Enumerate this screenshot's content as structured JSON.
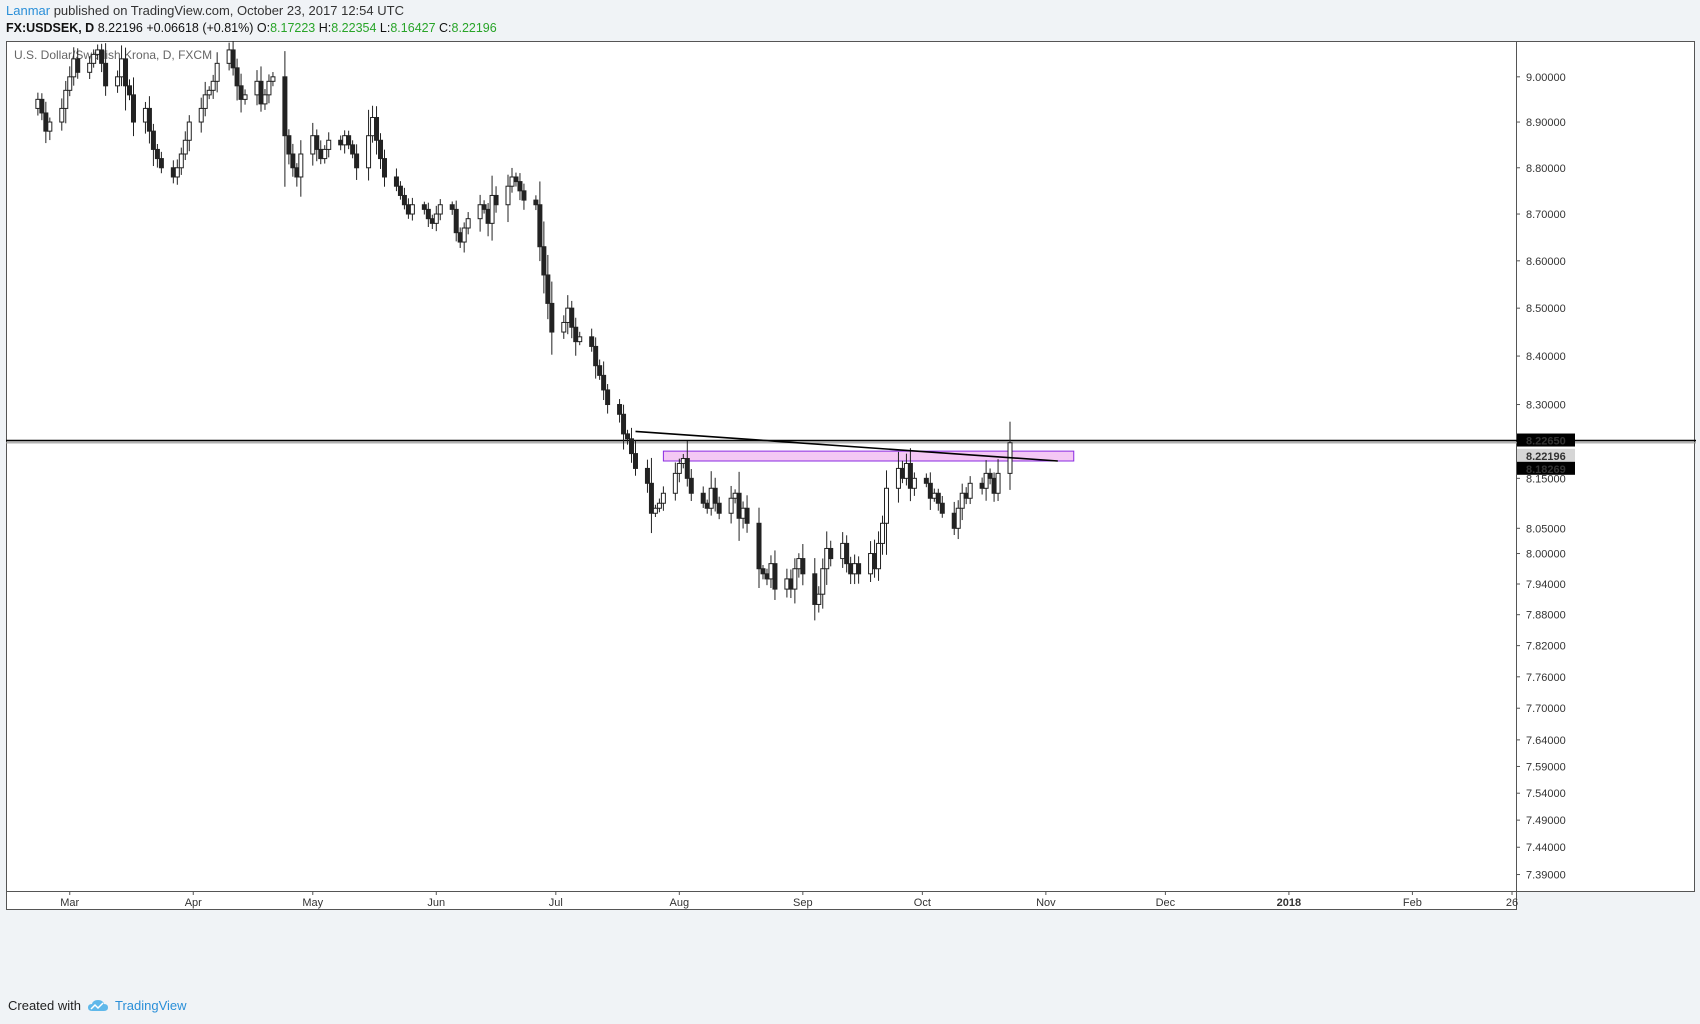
{
  "header": {
    "author": "Lanmar",
    "published": "published on TradingView.com, October 23, 2017 12:54 UTC",
    "symbol": "FX:USDSEK, D",
    "last": "8.22196",
    "change": "+0.06618 (+0.81%)",
    "o_label": "O:",
    "o_value": "8.17223",
    "h_label": "H:",
    "h_value": "8.22354",
    "l_label": "L:",
    "l_value": "8.16427",
    "c_label": "C:",
    "c_value": "8.22196"
  },
  "footer": {
    "created_with": "Created with",
    "brand": "TradingView"
  },
  "colors": {
    "background": "#ffffff",
    "candle_up": "#ffffff",
    "candle_down": "#222222",
    "zone_fill": "#f0b6f0",
    "zone_stroke": "#8a2be2",
    "resistance_line": "#000000",
    "last_price_line": "#999999",
    "axis_label_bg": "#000000",
    "brand_blue": "#2a8fd8"
  },
  "chart_data": {
    "type": "candlestick",
    "title": "U.S. Dollar/Swedish Krona, D, FXCM",
    "x_labels": [
      "Mar",
      "Apr",
      "May",
      "Jun",
      "Jul",
      "Aug",
      "Sep",
      "Oct",
      "Nov",
      "Dec",
      "2018",
      "Feb",
      "26"
    ],
    "y_ticks": [
      "9.00000",
      "8.90000",
      "8.80000",
      "8.70000",
      "8.60000",
      "8.50000",
      "8.40000",
      "8.30000",
      "8.15000",
      "8.05000",
      "8.00000",
      "7.94000",
      "7.88000",
      "7.82000",
      "7.76000",
      "7.70000",
      "7.64000",
      "7.59000",
      "7.54000",
      "7.49000",
      "7.44000",
      "7.39000"
    ],
    "y_scale": "log",
    "ylim": [
      7.36,
      9.08
    ],
    "price_labels": [
      {
        "value": "8.22650",
        "style": "dark"
      },
      {
        "value": "8.22196",
        "style": "light"
      },
      {
        "value": "8.18269",
        "style": "dark"
      }
    ],
    "horizontal_lines": [
      {
        "price": 8.2265,
        "color": "#000000"
      },
      {
        "price": 8.2219,
        "color": "#999999"
      }
    ],
    "resistance_zone": {
      "start": "2017-07-28",
      "end": "2017-11-08",
      "low": 8.185,
      "high": 8.205
    },
    "trendline": {
      "start_date": "2017-07-21",
      "start_price": 8.245,
      "end_date": "2017-11-04",
      "end_price": 8.185
    },
    "closes": [
      [
        "2017-02-20",
        8.93
      ],
      [
        "2017-02-21",
        8.95
      ],
      [
        "2017-02-22",
        8.92
      ],
      [
        "2017-02-23",
        8.88
      ],
      [
        "2017-02-24",
        8.9
      ],
      [
        "2017-02-27",
        8.93
      ],
      [
        "2017-02-28",
        8.97
      ],
      [
        "2017-03-01",
        9.0
      ],
      [
        "2017-03-02",
        9.04
      ],
      [
        "2017-03-03",
        9.01
      ],
      [
        "2017-03-06",
        9.03
      ],
      [
        "2017-03-07",
        9.05
      ],
      [
        "2017-03-08",
        9.06
      ],
      [
        "2017-03-09",
        9.03
      ],
      [
        "2017-03-10",
        8.98
      ],
      [
        "2017-03-13",
        9.0
      ],
      [
        "2017-03-14",
        9.04
      ],
      [
        "2017-03-15",
        8.98
      ],
      [
        "2017-03-16",
        8.96
      ],
      [
        "2017-03-17",
        8.9
      ],
      [
        "2017-03-20",
        8.93
      ],
      [
        "2017-03-21",
        8.88
      ],
      [
        "2017-03-22",
        8.84
      ],
      [
        "2017-03-23",
        8.82
      ],
      [
        "2017-03-24",
        8.8
      ],
      [
        "2017-03-27",
        8.78
      ],
      [
        "2017-03-28",
        8.8
      ],
      [
        "2017-03-29",
        8.83
      ],
      [
        "2017-03-30",
        8.86
      ],
      [
        "2017-03-31",
        8.9
      ],
      [
        "2017-04-03",
        8.93
      ],
      [
        "2017-04-04",
        8.96
      ],
      [
        "2017-04-05",
        8.97
      ],
      [
        "2017-04-06",
        8.99
      ],
      [
        "2017-04-07",
        9.03
      ],
      [
        "2017-04-10",
        9.06
      ],
      [
        "2017-04-11",
        9.02
      ],
      [
        "2017-04-12",
        8.98
      ],
      [
        "2017-04-13",
        8.95
      ],
      [
        "2017-04-14",
        8.96
      ],
      [
        "2017-04-17",
        8.99
      ],
      [
        "2017-04-18",
        8.94
      ],
      [
        "2017-04-19",
        8.96
      ],
      [
        "2017-04-20",
        8.99
      ],
      [
        "2017-04-21",
        9.0
      ],
      [
        "2017-04-24",
        8.87
      ],
      [
        "2017-04-25",
        8.83
      ],
      [
        "2017-04-26",
        8.8
      ],
      [
        "2017-04-27",
        8.78
      ],
      [
        "2017-04-28",
        8.83
      ],
      [
        "2017-05-01",
        8.87
      ],
      [
        "2017-05-02",
        8.84
      ],
      [
        "2017-05-03",
        8.82
      ],
      [
        "2017-05-04",
        8.84
      ],
      [
        "2017-05-05",
        8.86
      ],
      [
        "2017-05-08",
        8.85
      ],
      [
        "2017-05-09",
        8.87
      ],
      [
        "2017-05-10",
        8.85
      ],
      [
        "2017-05-11",
        8.83
      ],
      [
        "2017-05-12",
        8.8
      ],
      [
        "2017-05-15",
        8.87
      ],
      [
        "2017-05-16",
        8.91
      ],
      [
        "2017-05-17",
        8.86
      ],
      [
        "2017-05-18",
        8.82
      ],
      [
        "2017-05-19",
        8.78
      ],
      [
        "2017-05-22",
        8.76
      ],
      [
        "2017-05-23",
        8.74
      ],
      [
        "2017-05-24",
        8.72
      ],
      [
        "2017-05-25",
        8.7
      ],
      [
        "2017-05-26",
        8.72
      ],
      [
        "2017-05-29",
        8.71
      ],
      [
        "2017-05-30",
        8.69
      ],
      [
        "2017-05-31",
        8.68
      ],
      [
        "2017-06-01",
        8.7
      ],
      [
        "2017-06-02",
        8.72
      ],
      [
        "2017-06-05",
        8.71
      ],
      [
        "2017-06-06",
        8.66
      ],
      [
        "2017-06-07",
        8.64
      ],
      [
        "2017-06-08",
        8.67
      ],
      [
        "2017-06-09",
        8.69
      ],
      [
        "2017-06-12",
        8.72
      ],
      [
        "2017-06-13",
        8.71
      ],
      [
        "2017-06-14",
        8.68
      ],
      [
        "2017-06-15",
        8.74
      ],
      [
        "2017-06-16",
        8.72
      ],
      [
        "2017-06-19",
        8.76
      ],
      [
        "2017-06-20",
        8.78
      ],
      [
        "2017-06-21",
        8.77
      ],
      [
        "2017-06-22",
        8.75
      ],
      [
        "2017-06-23",
        8.73
      ],
      [
        "2017-06-26",
        8.72
      ],
      [
        "2017-06-27",
        8.63
      ],
      [
        "2017-06-28",
        8.57
      ],
      [
        "2017-06-29",
        8.51
      ],
      [
        "2017-06-30",
        8.45
      ],
      [
        "2017-07-03",
        8.47
      ],
      [
        "2017-07-04",
        8.5
      ],
      [
        "2017-07-05",
        8.46
      ],
      [
        "2017-07-06",
        8.43
      ],
      [
        "2017-07-07",
        8.44
      ],
      [
        "2017-07-10",
        8.42
      ],
      [
        "2017-07-11",
        8.38
      ],
      [
        "2017-07-12",
        8.36
      ],
      [
        "2017-07-13",
        8.33
      ],
      [
        "2017-07-14",
        8.3
      ],
      [
        "2017-07-17",
        8.28
      ],
      [
        "2017-07-18",
        8.24
      ],
      [
        "2017-07-19",
        8.23
      ],
      [
        "2017-07-20",
        8.2
      ],
      [
        "2017-07-21",
        8.17
      ],
      [
        "2017-07-24",
        8.14
      ],
      [
        "2017-07-25",
        8.08
      ],
      [
        "2017-07-26",
        8.09
      ],
      [
        "2017-07-27",
        8.1
      ],
      [
        "2017-07-28",
        8.12
      ],
      [
        "2017-07-31",
        8.16
      ],
      [
        "2017-08-01",
        8.18
      ],
      [
        "2017-08-02",
        8.19
      ],
      [
        "2017-08-03",
        8.15
      ],
      [
        "2017-08-04",
        8.12
      ],
      [
        "2017-08-07",
        8.1
      ],
      [
        "2017-08-08",
        8.09
      ],
      [
        "2017-08-09",
        8.13
      ],
      [
        "2017-08-10",
        8.1
      ],
      [
        "2017-08-11",
        8.08
      ],
      [
        "2017-08-14",
        8.11
      ],
      [
        "2017-08-15",
        8.12
      ],
      [
        "2017-08-16",
        8.07
      ],
      [
        "2017-08-17",
        8.09
      ],
      [
        "2017-08-18",
        8.06
      ],
      [
        "2017-08-21",
        7.97
      ],
      [
        "2017-08-22",
        7.96
      ],
      [
        "2017-08-23",
        7.95
      ],
      [
        "2017-08-24",
        7.98
      ],
      [
        "2017-08-25",
        7.93
      ],
      [
        "2017-08-28",
        7.95
      ],
      [
        "2017-08-29",
        7.93
      ],
      [
        "2017-08-30",
        7.97
      ],
      [
        "2017-08-31",
        7.99
      ],
      [
        "2017-09-01",
        7.96
      ],
      [
        "2017-09-04",
        7.9
      ],
      [
        "2017-09-05",
        7.92
      ],
      [
        "2017-09-06",
        7.97
      ],
      [
        "2017-09-07",
        8.01
      ],
      [
        "2017-09-08",
        7.99
      ],
      [
        "2017-09-11",
        8.02
      ],
      [
        "2017-09-12",
        7.98
      ],
      [
        "2017-09-13",
        7.96
      ],
      [
        "2017-09-14",
        7.98
      ],
      [
        "2017-09-15",
        7.96
      ],
      [
        "2017-09-18",
        8.0
      ],
      [
        "2017-09-19",
        7.97
      ],
      [
        "2017-09-20",
        8.02
      ],
      [
        "2017-09-21",
        8.06
      ],
      [
        "2017-09-22",
        8.13
      ],
      [
        "2017-09-25",
        8.17
      ],
      [
        "2017-09-26",
        8.15
      ],
      [
        "2017-09-27",
        8.18
      ],
      [
        "2017-09-28",
        8.13
      ],
      [
        "2017-09-29",
        8.15
      ],
      [
        "2017-10-02",
        8.14
      ],
      [
        "2017-10-03",
        8.11
      ],
      [
        "2017-10-04",
        8.12
      ],
      [
        "2017-10-05",
        8.1
      ],
      [
        "2017-10-06",
        8.08
      ],
      [
        "2017-10-09",
        8.05
      ],
      [
        "2017-10-10",
        8.09
      ],
      [
        "2017-10-11",
        8.12
      ],
      [
        "2017-10-12",
        8.11
      ],
      [
        "2017-10-13",
        8.14
      ],
      [
        "2017-10-16",
        8.13
      ],
      [
        "2017-10-17",
        8.16
      ],
      [
        "2017-10-18",
        8.15
      ],
      [
        "2017-10-19",
        8.12
      ],
      [
        "2017-10-20",
        8.16
      ],
      [
        "2017-10-23",
        8.22196
      ]
    ]
  }
}
